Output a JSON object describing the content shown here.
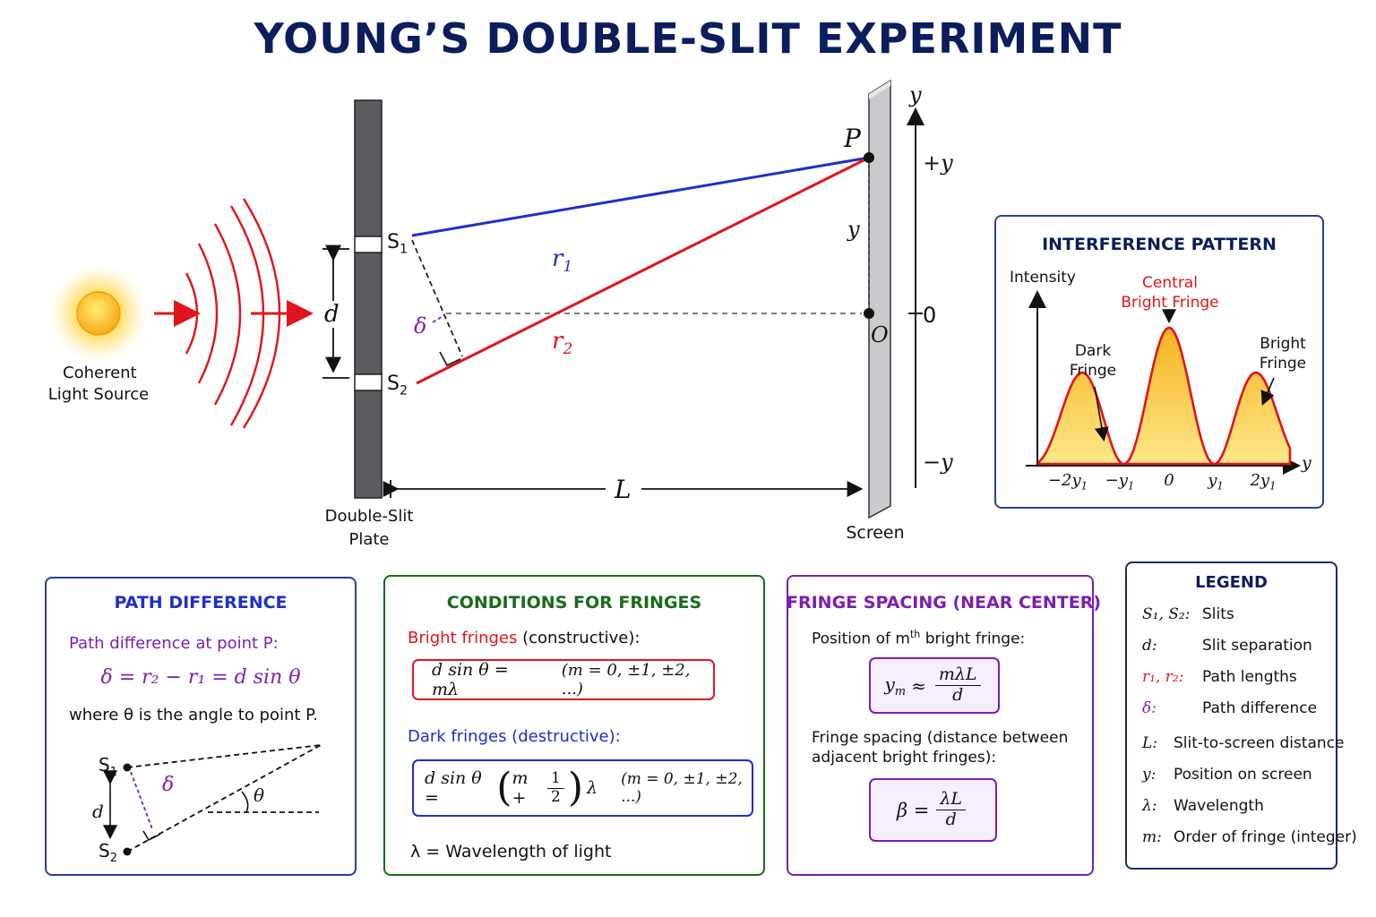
{
  "title": "YOUNG’S DOUBLE-SLIT EXPERIMENT",
  "colors": {
    "title": "#0b1d5c",
    "blue_ray": "#1f2fc8",
    "red_ray": "#e0141b",
    "purple": "#7a1fb0",
    "green": "#1a6b1a",
    "box_blue": "#2a3f9a",
    "fringe_fill": "#f6c53a"
  },
  "setup": {
    "source_label_1": "Coherent",
    "source_label_2": "Light Source",
    "plate_label_1": "Double-Slit",
    "plate_label_2": "Plate",
    "screen_label": "Screen",
    "s1": "S",
    "s1_sub": "1",
    "s2": "S",
    "s2_sub": "2",
    "d": "d",
    "delta": "δ",
    "r1": "r",
    "r1_sub": "1",
    "r2": "r",
    "r2_sub": "2",
    "L": "L",
    "P": "P",
    "O": "O",
    "y_small": "y",
    "axis_y": "y",
    "axis_plus_y": "+y",
    "axis_zero": "0",
    "axis_minus_y": "−y"
  },
  "interference": {
    "title": "INTERFERENCE PATTERN",
    "ylabel": "Intensity",
    "central_1": "Central",
    "central_2": "Bright Fringe",
    "dark_1": "Dark",
    "dark_2": "Fringe",
    "bright_1": "Bright",
    "bright_2": "Fringe",
    "xaxis": "y",
    "ticks": [
      "−2y",
      "−y",
      "0",
      "y",
      "2y"
    ],
    "tick_subs": [
      "1",
      "1",
      "",
      "1",
      "1"
    ]
  },
  "path_difference": {
    "title": "PATH DIFFERENCE",
    "subtitle": "Path difference at point P:",
    "equation": "δ = r₂ − r₁ = d sin θ",
    "note": "where θ is the angle to point P.",
    "s1": "S",
    "s1_sub": "1",
    "s2": "S",
    "s2_sub": "2",
    "d": "d",
    "delta": "δ",
    "theta": "θ"
  },
  "conditions": {
    "title": "CONDITIONS FOR FRINGES",
    "bright_label": "Bright fringes",
    "bright_suffix": " (constructive):",
    "bright_eq": "d sin θ = mλ",
    "bright_range": "(m = 0, ±1, ±2, ...)",
    "dark_label": "Dark fringes (destructive):",
    "dark_eq_left": "d sin θ =",
    "dark_eq_m": "m +",
    "dark_frac_num": "1",
    "dark_frac_den": "2",
    "dark_eq_right": "λ",
    "dark_range": "(m = 0, ±1, ±2, ...)",
    "lambda_note": "λ  =  Wavelength of light"
  },
  "fringe_spacing": {
    "title": "FRINGE SPACING (NEAR CENTER)",
    "position_label_pre": "Position of m",
    "position_label_sup": "th",
    "position_label_post": " bright fringe:",
    "ym_left": "y",
    "ym_sub": "m",
    "ym_approx": "≈",
    "ym_num": "mλL",
    "ym_den": "d",
    "spacing_label_1": "Fringe spacing (distance between",
    "spacing_label_2": "adjacent bright fringes):",
    "beta_left": "β =",
    "beta_num": "λL",
    "beta_den": "d"
  },
  "legend": {
    "title": "LEGEND",
    "items": [
      {
        "symbol": "S₁, S₂:",
        "text": "Slits"
      },
      {
        "symbol": "d:",
        "text": "Slit separation"
      },
      {
        "symbol": "r₁, r₂:",
        "text": "Path lengths"
      },
      {
        "symbol": "δ:",
        "text": "Path difference"
      },
      {
        "symbol": "L:",
        "text": "Slit-to-screen distance"
      },
      {
        "symbol": "y:",
        "text": "Position on screen"
      },
      {
        "symbol": "λ:",
        "text": "Wavelength"
      },
      {
        "symbol": "m:",
        "text": "Order of fringe (integer)"
      }
    ]
  }
}
